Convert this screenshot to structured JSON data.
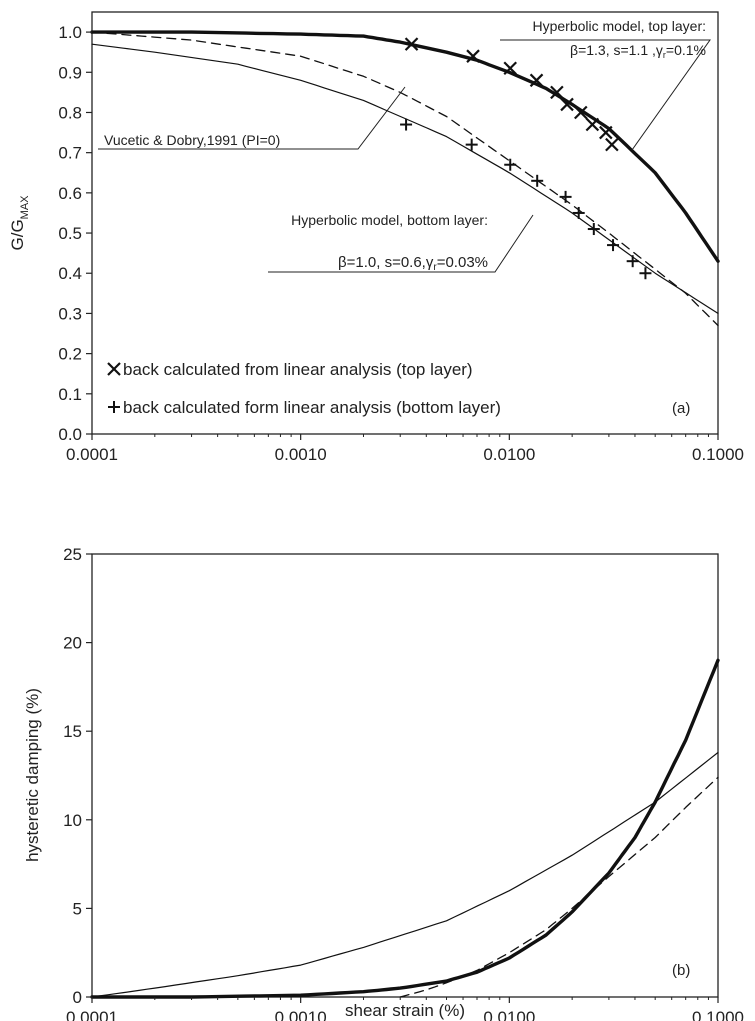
{
  "chart_data": [
    {
      "type": "line",
      "panel_label": "(a)",
      "xscale": "log",
      "xlim": [
        0.0001,
        0.1
      ],
      "ylim": [
        0,
        1.05
      ],
      "x_ticks": [
        0.0001,
        0.001,
        0.01,
        0.1
      ],
      "x_tick_labels": [
        "0.0001",
        "0.0010",
        "0.0100",
        "0.1000"
      ],
      "y_ticks": [
        0,
        0.1,
        0.2,
        0.3,
        0.4,
        0.5,
        0.6,
        0.7,
        0.8,
        0.9,
        1.0
      ],
      "y_tick_labels": [
        "0.0",
        "0.1",
        "0.2",
        "0.3",
        "0.4",
        "0.5",
        "0.6",
        "0.7",
        "0.8",
        "0.9",
        "1.0"
      ],
      "ylabel": {
        "main": "G/G",
        "sub": "MAX"
      },
      "xlabel": "",
      "grid": false,
      "series": [
        {
          "style": "thick-solid",
          "x": [
            0.0001,
            0.0003,
            0.001,
            0.002,
            0.003,
            0.005,
            0.007,
            0.01,
            0.015,
            0.02,
            0.03,
            0.05,
            0.07,
            0.1
          ],
          "values": [
            1.0,
            1.0,
            0.995,
            0.99,
            0.975,
            0.95,
            0.93,
            0.9,
            0.86,
            0.82,
            0.76,
            0.65,
            0.55,
            0.43
          ]
        },
        {
          "style": "thin-solid",
          "x": [
            0.0001,
            0.0002,
            0.0005,
            0.001,
            0.002,
            0.005,
            0.01,
            0.02,
            0.05,
            0.1
          ],
          "values": [
            0.97,
            0.95,
            0.92,
            0.88,
            0.83,
            0.74,
            0.65,
            0.55,
            0.4,
            0.3
          ]
        },
        {
          "style": "dashed",
          "x": [
            0.0001,
            0.0003,
            0.001,
            0.002,
            0.003,
            0.005,
            0.01,
            0.02,
            0.03,
            0.05,
            0.07,
            0.1
          ],
          "values": [
            1.0,
            0.98,
            0.94,
            0.89,
            0.85,
            0.79,
            0.68,
            0.57,
            0.5,
            0.41,
            0.35,
            0.27
          ]
        }
      ],
      "markers": [
        {
          "symbol": "x",
          "x": [
            0.0034,
            0.0067,
            0.0101,
            0.0135,
            0.0169,
            0.0189,
            0.022,
            0.025,
            0.029,
            0.031
          ],
          "values": [
            0.97,
            0.94,
            0.91,
            0.88,
            0.85,
            0.82,
            0.8,
            0.77,
            0.75,
            0.72
          ]
        },
        {
          "symbol": "+",
          "x": [
            0.0032,
            0.0066,
            0.0101,
            0.0136,
            0.0186,
            0.0215,
            0.0254,
            0.0314,
            0.039,
            0.0449
          ],
          "values": [
            0.77,
            0.72,
            0.67,
            0.63,
            0.59,
            0.55,
            0.51,
            0.47,
            0.43,
            0.4
          ]
        }
      ],
      "annotations": {
        "top_title": "Hyperbolic model, top layer:",
        "top_params": "β=1.3, s=1.1 ,γr=0.1%",
        "vd_label": "Vucetic & Dobry,1991 (PI=0)",
        "bottom_title": "Hyperbolic model, bottom layer:",
        "bottom_params": "β=1.0, s=0.6,γr=0.03%"
      },
      "legend": [
        {
          "symbol": "x",
          "label": "back calculated from linear analysis (top layer)"
        },
        {
          "symbol": "+",
          "label": "back calculated form linear analysis (bottom layer)"
        }
      ],
      "legend_position": "bottom-left"
    },
    {
      "type": "line",
      "panel_label": "(b)",
      "xscale": "log",
      "xlim": [
        0.0001,
        0.1
      ],
      "ylim": [
        0,
        25
      ],
      "x_ticks": [
        0.0001,
        0.001,
        0.01,
        0.1
      ],
      "x_tick_labels": [
        "0.0001",
        "0.0010",
        "0.0100",
        "0.1000"
      ],
      "y_ticks": [
        0,
        5,
        10,
        15,
        20,
        25
      ],
      "y_tick_labels": [
        "0",
        "5",
        "10",
        "15",
        "20",
        "25"
      ],
      "xlabel": "shear strain (%)",
      "ylabel": "hysteretic damping (%)",
      "grid": false,
      "series": [
        {
          "style": "thin-solid",
          "x": [
            0.0001,
            0.0002,
            0.0005,
            0.001,
            0.002,
            0.005,
            0.01,
            0.02,
            0.05,
            0.1
          ],
          "values": [
            0,
            0.5,
            1.2,
            1.8,
            2.8,
            4.3,
            6.0,
            8.0,
            11.0,
            13.8
          ]
        },
        {
          "style": "thick-solid",
          "x": [
            0.0001,
            0.0003,
            0.001,
            0.002,
            0.003,
            0.005,
            0.007,
            0.01,
            0.015,
            0.02,
            0.03,
            0.04,
            0.05,
            0.07,
            0.1
          ],
          "values": [
            0,
            0,
            0.1,
            0.3,
            0.5,
            0.9,
            1.4,
            2.2,
            3.5,
            4.8,
            7.0,
            9.0,
            11.0,
            14.5,
            19.0
          ]
        },
        {
          "style": "dashed",
          "x": [
            0.003,
            0.004,
            0.005,
            0.007,
            0.01,
            0.015,
            0.02,
            0.03,
            0.05,
            0.07,
            0.1
          ],
          "values": [
            0,
            0.4,
            0.8,
            1.5,
            2.5,
            3.8,
            5.0,
            6.8,
            9.0,
            10.7,
            12.4
          ]
        }
      ]
    }
  ]
}
